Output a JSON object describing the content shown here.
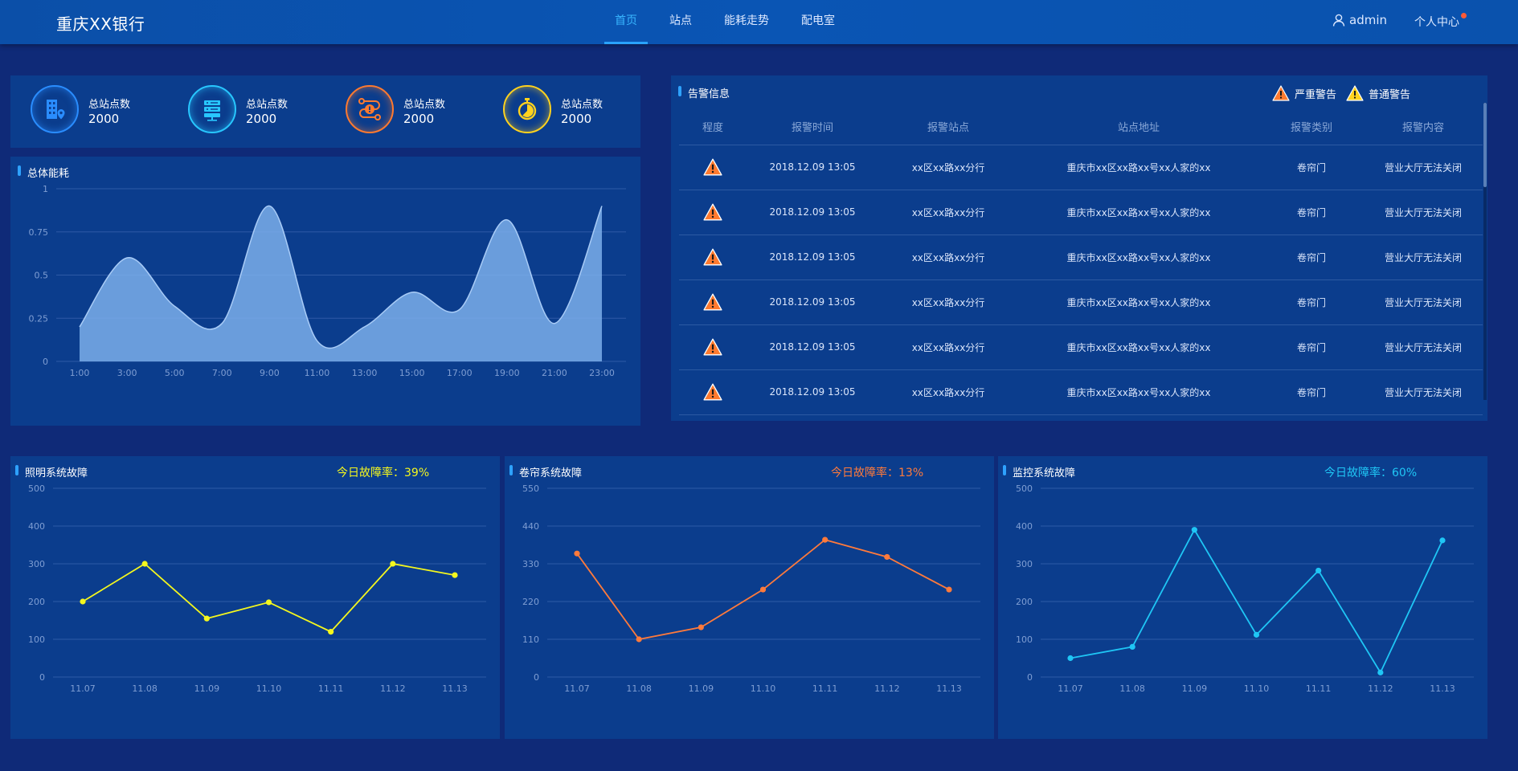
{
  "header": {
    "logo": "重庆XX银行",
    "nav": [
      "首页",
      "站点",
      "能耗走势",
      "配电室"
    ],
    "active_index": 0,
    "user": "admin",
    "center": "个人中心"
  },
  "stats": [
    {
      "label": "总站点数",
      "value": "2000",
      "icon": "building-location-icon",
      "color": "#2a8dff"
    },
    {
      "label": "总站点数",
      "value": "2000",
      "icon": "server-icon",
      "color": "#28c7ff"
    },
    {
      "label": "总站点数",
      "value": "2000",
      "icon": "route-alert-icon",
      "color": "#ff7a2f"
    },
    {
      "label": "总站点数",
      "value": "2000",
      "icon": "stopwatch-icon",
      "color": "#ffd21e"
    }
  ],
  "energy": {
    "title": "总体能耗"
  },
  "alarm": {
    "title": "告警信息",
    "legend_severe": "严重警告",
    "legend_normal": "普通警告",
    "columns": [
      "程度",
      "报警时间",
      "报警站点",
      "站点地址",
      "报警类别",
      "报警内容"
    ],
    "rows": [
      {
        "time": "2018.12.09 13:05",
        "site": "xx区xx路xx分行",
        "address": "重庆市xx区xx路xx号xx人家的xx",
        "category": "卷帘门",
        "content": "营业大厅无法关闭"
      },
      {
        "time": "2018.12.09 13:05",
        "site": "xx区xx路xx分行",
        "address": "重庆市xx区xx路xx号xx人家的xx",
        "category": "卷帘门",
        "content": "营业大厅无法关闭"
      },
      {
        "time": "2018.12.09 13:05",
        "site": "xx区xx路xx分行",
        "address": "重庆市xx区xx路xx号xx人家的xx",
        "category": "卷帘门",
        "content": "营业大厅无法关闭"
      },
      {
        "time": "2018.12.09 13:05",
        "site": "xx区xx路xx分行",
        "address": "重庆市xx区xx路xx号xx人家的xx",
        "category": "卷帘门",
        "content": "营业大厅无法关闭"
      },
      {
        "time": "2018.12.09 13:05",
        "site": "xx区xx路xx分行",
        "address": "重庆市xx区xx路xx号xx人家的xx",
        "category": "卷帘门",
        "content": "营业大厅无法关闭"
      },
      {
        "time": "2018.12.09 13:05",
        "site": "xx区xx路xx分行",
        "address": "重庆市xx区xx路xx号xx人家的xx",
        "category": "卷帘门",
        "content": "营业大厅无法关闭"
      }
    ],
    "colors": {
      "severe": "#ff7a2f",
      "normal": "#ffd21e"
    }
  },
  "faults": [
    {
      "title": "照明系统故障",
      "rate": "今日故障率：39%",
      "color": "#f4f71e"
    },
    {
      "title": "卷帘系统故障",
      "rate": "今日故障率：13%",
      "color": "#ff7a3b"
    },
    {
      "title": "监控系统故障",
      "rate": "今日故障率：60%",
      "color": "#1fc6f5"
    }
  ],
  "chart_data": [
    {
      "type": "area",
      "x": [
        "1:00",
        "3:00",
        "5:00",
        "7:00",
        "9:00",
        "11:00",
        "13:00",
        "15:00",
        "17:00",
        "19:00",
        "21:00",
        "23:00"
      ],
      "y": [
        0.2,
        0.6,
        0.32,
        0.22,
        0.9,
        0.12,
        0.2,
        0.4,
        0.3,
        0.82,
        0.22,
        0.9
      ],
      "yticks": [
        "0",
        "0.25",
        "0.5",
        "0.75",
        "1"
      ],
      "ylim": [
        0,
        1
      ],
      "color": "#7fb2ee",
      "grid": true
    },
    {
      "type": "line",
      "x": [
        "11.07",
        "11.08",
        "11.09",
        "11.10",
        "11.11",
        "11.12",
        "11.13"
      ],
      "y": [
        200,
        300,
        155,
        198,
        120,
        300,
        270
      ],
      "yticks": [
        "0",
        "100",
        "200",
        "300",
        "400",
        "500"
      ],
      "ylim": [
        0,
        500
      ],
      "color": "#f4f71e",
      "grid": true
    },
    {
      "type": "line",
      "x": [
        "11.07",
        "11.08",
        "11.09",
        "11.10",
        "11.11",
        "11.12",
        "11.13"
      ],
      "y": [
        360,
        110,
        145,
        255,
        400,
        350,
        255
      ],
      "yticks": [
        "0",
        "110",
        "220",
        "330",
        "440",
        "550"
      ],
      "ylim": [
        0,
        550
      ],
      "color": "#ff7a3b",
      "grid": true
    },
    {
      "type": "line",
      "x": [
        "11.07",
        "11.08",
        "11.09",
        "11.10",
        "11.11",
        "11.12",
        "11.13"
      ],
      "y": [
        50,
        80,
        390,
        112,
        282,
        12,
        362
      ],
      "yticks": [
        "0",
        "100",
        "200",
        "300",
        "400",
        "500"
      ],
      "ylim": [
        0,
        500
      ],
      "color": "#1fc6f5",
      "grid": true
    }
  ]
}
